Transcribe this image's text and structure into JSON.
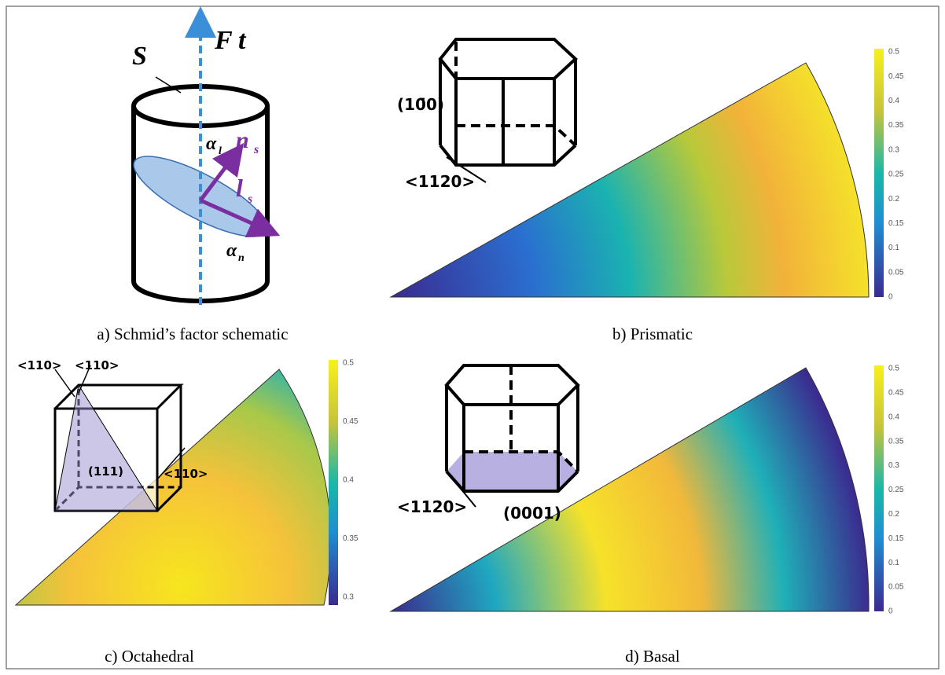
{
  "panels": [
    {
      "caption": "a) Schmid’s factor schematic",
      "labels": {
        "surface": "S",
        "force": "F",
        "force_dir": "t⃗",
        "alpha_l": "α",
        "alpha_l_sub": "l",
        "normal": "n⃗",
        "normal_sub": "s",
        "slip": "l⃗",
        "slip_sub": "s",
        "alpha_n": "α",
        "alpha_n_sub": "n"
      }
    },
    {
      "caption": "b) Prismatic",
      "labels": {
        "plane": "(10̄0)",
        "direction": "<1120>"
      },
      "colorbar_ticks": [
        "0.5",
        "0.45",
        "0.4",
        "0.35",
        "0.3",
        "0.25",
        "0.2",
        "0.15",
        "0.1",
        "0.05",
        "0"
      ]
    },
    {
      "caption": "c) Octahedral",
      "labels": {
        "dir1": "<110>",
        "dir2": "<110>",
        "plane": "(111)",
        "dir3": "<110>"
      },
      "colorbar_ticks": [
        "0.5",
        "0.45",
        "0.4",
        "0.35",
        "0.3"
      ]
    },
    {
      "caption": "d) Basal",
      "labels": {
        "direction": "<1120>",
        "plane": "(0001)"
      },
      "colorbar_ticks": [
        "0.5",
        "0.45",
        "0.4",
        "0.35",
        "0.3",
        "0.25",
        "0.2",
        "0.15",
        "0.1",
        "0.05",
        "0"
      ]
    }
  ]
}
